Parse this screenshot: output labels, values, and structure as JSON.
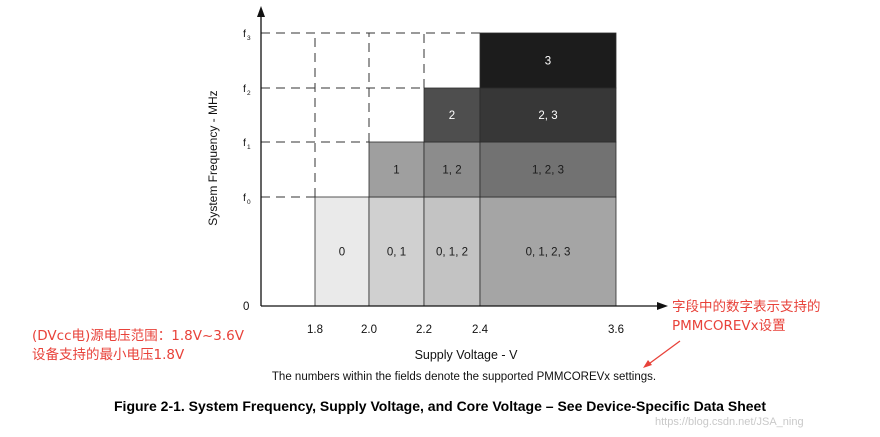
{
  "chart_data": {
    "type": "region-step",
    "xlabel": "Supply Voltage - V",
    "ylabel": "System Frequency - MHz",
    "x_ticks": [
      {
        "value": 1.8,
        "label": "1.8"
      },
      {
        "value": 2.0,
        "label": "2.0"
      },
      {
        "value": 2.2,
        "label": "2.2"
      },
      {
        "value": 2.4,
        "label": "2.4"
      },
      {
        "value": 3.6,
        "label": "3.6"
      }
    ],
    "y_ticks": [
      {
        "level": 0,
        "label": "0",
        "sub": ""
      },
      {
        "level": 1,
        "label": "f",
        "sub": "0"
      },
      {
        "level": 2,
        "label": "f",
        "sub": "1"
      },
      {
        "level": 3,
        "label": "f",
        "sub": "2"
      },
      {
        "level": 4,
        "label": "f",
        "sub": "3"
      }
    ],
    "cells": [
      {
        "x0": 1.8,
        "x1": 2.0,
        "y0": 0,
        "y1": 1,
        "label": "0",
        "fill": "#eaeaea"
      },
      {
        "x0": 2.0,
        "x1": 2.2,
        "y0": 0,
        "y1": 1,
        "label": "0, 1",
        "fill": "#d0d0d0"
      },
      {
        "x0": 2.2,
        "x1": 2.4,
        "y0": 0,
        "y1": 1,
        "label": "0, 1, 2",
        "fill": "#c3c3c3"
      },
      {
        "x0": 2.4,
        "x1": 3.6,
        "y0": 0,
        "y1": 1,
        "label": "0, 1, 2, 3",
        "fill": "#a5a5a5"
      },
      {
        "x0": 2.0,
        "x1": 2.2,
        "y0": 1,
        "y1": 2,
        "label": "1",
        "fill": "#9f9f9f"
      },
      {
        "x0": 2.2,
        "x1": 2.4,
        "y0": 1,
        "y1": 2,
        "label": "1, 2",
        "fill": "#8c8c8c"
      },
      {
        "x0": 2.4,
        "x1": 3.6,
        "y0": 1,
        "y1": 2,
        "label": "1, 2, 3",
        "fill": "#727272"
      },
      {
        "x0": 2.2,
        "x1": 2.4,
        "y0": 2,
        "y1": 3,
        "label": "2",
        "fill": "#4e4e4e"
      },
      {
        "x0": 2.4,
        "x1": 3.6,
        "y0": 2,
        "y1": 3,
        "label": "2, 3",
        "fill": "#373737"
      },
      {
        "x0": 2.4,
        "x1": 3.6,
        "y0": 3,
        "y1": 4,
        "label": "3",
        "fill": "#1c1c1c"
      }
    ]
  },
  "annotations": {
    "left_note_line1": "(DVcc电)源电压范围：1.8V~3.6V",
    "left_note_line2": "设备支持的最小电压1.8V",
    "right_note_line1": "字段中的数字表示支持的",
    "right_note_line2": "PMMCOREVx设置",
    "color": "#e8423a"
  },
  "subnote": "The numbers within the fields denote the supported PMMCOREVx settings.",
  "caption": "Figure 2-1. System Frequency, Supply Voltage, and Core Voltage – See Device-Specific Data Sheet",
  "watermark": "https://blog.csdn.net/JSA_ning"
}
